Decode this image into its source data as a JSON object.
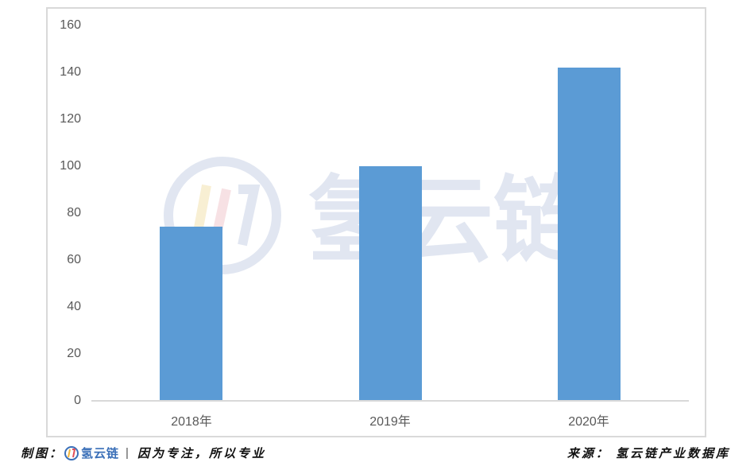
{
  "chart_data": {
    "type": "bar",
    "title": "",
    "xlabel": "",
    "ylabel": "",
    "categories": [
      "2018年",
      "2019年",
      "2020年"
    ],
    "values": [
      74,
      100,
      142
    ],
    "ylim": [
      0,
      160
    ],
    "yticks": [
      "160",
      "140",
      "120",
      "100",
      "80",
      "60",
      "40",
      "20",
      "0"
    ],
    "grid": false,
    "legend": null,
    "bar_color": "#5b9bd5"
  },
  "watermark": {
    "text": "氢云链"
  },
  "footer": {
    "left_prefix": "制图：",
    "left_brand": "氢云链",
    "left_separator": "|",
    "left_slogan": "因为专注，所以专业",
    "right_source": "来源： 氢云链产业数据库"
  }
}
